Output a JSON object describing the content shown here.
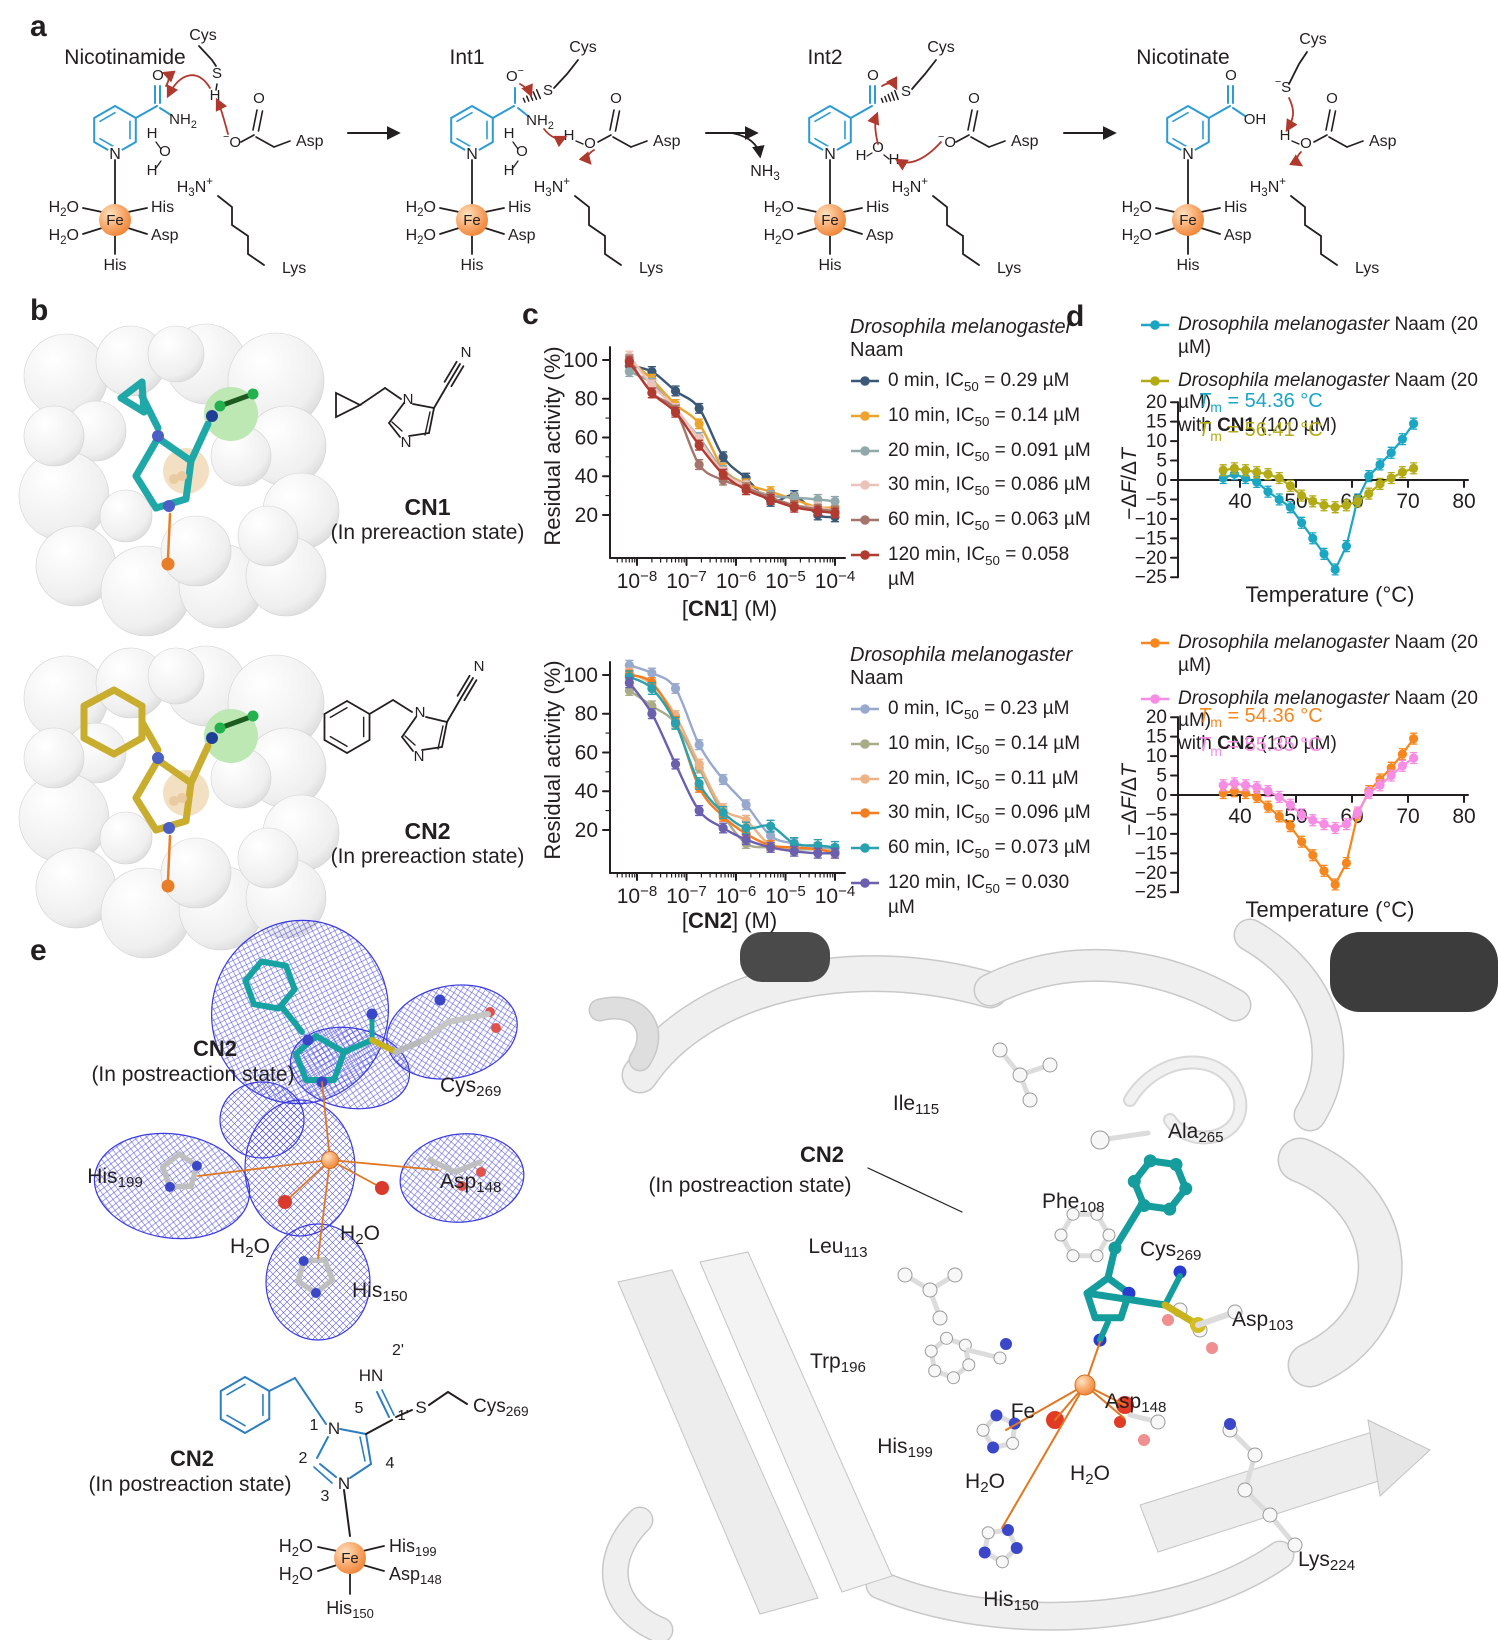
{
  "panel_letters": {
    "a": "a",
    "b": "b",
    "c": "c",
    "d": "d",
    "e": "e"
  },
  "panel_a": {
    "stage_titles": [
      "Nicotinamide",
      "Int1",
      "Int2",
      "Nicotinate"
    ],
    "atoms": {
      "O": "O",
      "N": "N",
      "S": "S",
      "H": "H",
      "OH": "OH",
      "Fe": "Fe",
      "minus": "−",
      "plus": "+"
    },
    "residues": {
      "cys": "Cys",
      "asp": "Asp",
      "lys": "Lys",
      "his": "His"
    },
    "molecules": {
      "nh2": [
        {
          "t": "NH"
        },
        {
          "s": "2"
        }
      ],
      "nh3": [
        {
          "t": "NH"
        },
        {
          "s": "3"
        }
      ],
      "h2o": [
        {
          "t": "H"
        },
        {
          "s": "2"
        },
        {
          "t": "O"
        }
      ],
      "h3n": [
        {
          "t": "H"
        },
        {
          "s": "3"
        },
        {
          "t": "N"
        },
        {
          "sup": "+"
        }
      ],
      "o_minus": [
        {
          "sup": "−"
        },
        {
          "t": "O"
        }
      ],
      "o_minus_r": [
        {
          "t": "O"
        },
        {
          "sup": "−"
        }
      ],
      "s_minus": [
        {
          "sup": "−"
        },
        {
          "t": "S"
        }
      ]
    }
  },
  "panel_b": {
    "cn1": {
      "name": "CN1",
      "state": "(In prereaction state)",
      "nitrile_n": "N",
      "ring_n": "N"
    },
    "cn2": {
      "name": "CN2",
      "state": "(In prereaction state)",
      "nitrile_n": "N",
      "ring_n": "N"
    }
  },
  "chart_data": [
    {
      "id": "dose_cn1",
      "type": "scatter",
      "ylabel": "Residual activity (%)",
      "xlabel_parts": {
        "pre": "[",
        "bold": "CN1",
        "post": "] (M)"
      },
      "legend": {
        "title_italic": "Drosophila melanogaster",
        "title_rest": "Naam"
      },
      "x_M": [
        7e-09,
        2e-08,
        6e-08,
        1.8e-07,
        5.5e-07,
        1.6e-06,
        5e-06,
        1.5e-05,
        4.5e-05,
        0.0001
      ],
      "xtick_exponents": [
        -8,
        -7,
        -6,
        -5,
        -4
      ],
      "yticks": [
        20,
        40,
        60,
        80,
        100
      ],
      "ylim": [
        0,
        110
      ],
      "series": [
        {
          "label": {
            "pre": "0 min, IC",
            "sub": "50",
            "post": " = 0.29  µM"
          },
          "color": "#3b5876",
          "err": 2.5,
          "y": [
            97,
            94,
            84,
            75,
            50,
            39,
            27,
            30,
            20,
            19
          ]
        },
        {
          "label": {
            "pre": "10 min, IC",
            "sub": "50",
            "post": " = 0.14  µM"
          },
          "color": "#eca42f",
          "err": 2.5,
          "y": [
            100,
            90,
            77,
            67,
            44,
            36,
            32,
            28,
            24,
            24
          ]
        },
        {
          "label": {
            "pre": "20 min, IC",
            "sub": "50",
            "post": " = 0.091  µM"
          },
          "color": "#92a9ab",
          "err": 2.5,
          "y": [
            94,
            88,
            74,
            60,
            43,
            35,
            30,
            29,
            28,
            27
          ]
        },
        {
          "label": {
            "pre": "30 min, IC",
            "sub": "50",
            "post": " = 0.086  µM"
          },
          "color": "#ecc3bb",
          "err": 2.5,
          "y": [
            102,
            87,
            75,
            59,
            42,
            35,
            29,
            25,
            24,
            22
          ]
        },
        {
          "label": {
            "pre": "60 min, IC",
            "sub": "50",
            "post": " = 0.063  µM"
          },
          "color": "#a4766b",
          "err": 2.5,
          "y": [
            100,
            83,
            74,
            46,
            38,
            34,
            29,
            25,
            23,
            22
          ]
        },
        {
          "label": {
            "pre": "120 min, IC",
            "sub": "50",
            "post": " = 0.058  µM"
          },
          "color": "#b23b31",
          "err": 2.5,
          "y": [
            99,
            83,
            73,
            56,
            41,
            33,
            28,
            24,
            22,
            21
          ]
        }
      ]
    },
    {
      "id": "dose_cn2",
      "type": "scatter",
      "ylabel": "Residual activity (%)",
      "xlabel_parts": {
        "pre": "[",
        "bold": "CN2",
        "post": "] (M)"
      },
      "legend": {
        "title_italic": "Drosophila melanogaster",
        "title_rest": "Naam"
      },
      "x_M": [
        7e-09,
        2e-08,
        6e-08,
        1.8e-07,
        5.5e-07,
        1.6e-06,
        5e-06,
        1.5e-05,
        4.5e-05,
        0.0001
      ],
      "xtick_exponents": [
        -8,
        -7,
        -6,
        -5,
        -4
      ],
      "yticks": [
        20,
        40,
        60,
        80,
        100
      ],
      "ylim": [
        0,
        110
      ],
      "series": [
        {
          "label": {
            "pre": "0 min, IC",
            "sub": "50",
            "post": " = 0.23  µM"
          },
          "color": "#98a9ce",
          "err": 2.5,
          "y": [
            105,
            101,
            93,
            64,
            46,
            33,
            17,
            13,
            11,
            10
          ]
        },
        {
          "label": {
            "pre": "10 min, IC",
            "sub": "50",
            "post": " = 0.14  µM"
          },
          "color": "#a9ab89",
          "err": 2.5,
          "y": [
            92,
            84,
            75,
            52,
            28,
            13,
            11,
            10,
            10,
            9
          ]
        },
        {
          "label": {
            "pre": "20 min, IC",
            "sub": "50",
            "post": " = 0.11  µM"
          },
          "color": "#edb286",
          "err": 2.5,
          "y": [
            101,
            95,
            79,
            54,
            31,
            25,
            12,
            11,
            10,
            9
          ]
        },
        {
          "label": {
            "pre": "30 min, IC",
            "sub": "50",
            "post": " = 0.096  µM"
          },
          "color": "#f57d21",
          "err": 2.5,
          "y": [
            100,
            96,
            76,
            42,
            27,
            18,
            12,
            11,
            10,
            8
          ]
        },
        {
          "label": {
            "pre": "60 min, IC",
            "sub": "50",
            "post": " = 0.073  µM"
          },
          "color": "#29a1ae",
          "err": 3,
          "y": [
            99,
            93,
            75,
            44,
            29,
            21,
            22,
            13,
            12,
            11
          ]
        },
        {
          "label": {
            "pre": "120 min, IC",
            "sub": "50",
            "post": " = 0.030  µM"
          },
          "color": "#6a60ae",
          "err": 2.5,
          "y": [
            96,
            80,
            54,
            30,
            21,
            15,
            11,
            9,
            8,
            8
          ]
        }
      ]
    },
    {
      "id": "melt_cn1",
      "type": "line",
      "ylabel_parts": [
        {
          "t": "−Δ"
        },
        {
          "i": "F"
        },
        {
          "t": "/Δ"
        },
        {
          "i": "T"
        }
      ],
      "xlabel": "Temperature (°C)",
      "xticks": [
        40,
        50,
        60,
        70,
        80
      ],
      "yticks": [
        -25,
        -20,
        -15,
        -10,
        -5,
        0,
        5,
        10,
        15,
        20
      ],
      "x": [
        37,
        39,
        41,
        43,
        45,
        47,
        49,
        51,
        53,
        55,
        57,
        59,
        61,
        63,
        65,
        67,
        69,
        71
      ],
      "annotations": [
        {
          "pre": "T",
          "sub": "m",
          "post": " = 54.36 °C",
          "color": "#1ba6c4"
        },
        {
          "pre": "T",
          "sub": "m",
          "post": " = 56.41 °C",
          "color": "#b3ab16"
        }
      ],
      "series": [
        {
          "legend": {
            "italic": "Drosophila melanogaster",
            "rest": " Naam (20 µM)"
          },
          "color": "#1ba6c4",
          "err": 1.4,
          "y": [
            0.5,
            1.5,
            0.5,
            -0.5,
            -3,
            -5,
            -7,
            -11,
            -15,
            -19,
            -23,
            -17,
            -5,
            1,
            4,
            7,
            10.5,
            14.5
          ]
        },
        {
          "legend": {
            "italic": "Drosophila melanogaster",
            "rest": " Naam (20 µM)",
            "line2_pre": "with ",
            "line2_bold": "CN1",
            "line2_post": " (100 µM)"
          },
          "color": "#b3ab16",
          "err": 1.4,
          "y": [
            2.5,
            3,
            2.5,
            2,
            1.5,
            0.5,
            -1.5,
            -4,
            -5.5,
            -6.5,
            -7,
            -6.5,
            -5.5,
            -3.5,
            -1,
            0.5,
            2,
            3
          ]
        }
      ]
    },
    {
      "id": "melt_cn2",
      "type": "line",
      "ylabel_parts": [
        {
          "t": "−Δ"
        },
        {
          "i": "F"
        },
        {
          "t": "/Δ"
        },
        {
          "i": "T"
        }
      ],
      "xlabel": "Temperature (°C)",
      "xticks": [
        40,
        50,
        60,
        70,
        80
      ],
      "yticks": [
        -25,
        -20,
        -15,
        -10,
        -5,
        0,
        5,
        10,
        15,
        20
      ],
      "x": [
        37,
        39,
        41,
        43,
        45,
        47,
        49,
        51,
        53,
        55,
        57,
        59,
        61,
        63,
        65,
        67,
        69,
        71
      ],
      "annotations": [
        {
          "pre": "T",
          "sub": "m",
          "post": " = 54.36 °C",
          "color": "#f6871f"
        },
        {
          "pre": "T",
          "sub": "m",
          "post": " = 55.35 °C",
          "color": "#f78ce4"
        }
      ],
      "series": [
        {
          "legend": {
            "italic": "Drosophila melanogaster",
            "rest": " Naam (20 µM)"
          },
          "color": "#f6871f",
          "err": 1.4,
          "y": [
            0.5,
            1,
            0.5,
            -0.5,
            -3,
            -5.5,
            -8,
            -12,
            -15.5,
            -19.5,
            -23,
            -17.5,
            -5,
            1,
            4,
            7,
            10.5,
            14.5
          ]
        },
        {
          "legend": {
            "italic": "Drosophila melanogaster",
            "rest": " Naam (20 µM)",
            "line2_pre": "with ",
            "line2_bold": "CN2",
            "line2_post": " (100 µM)"
          },
          "color": "#f78ce4",
          "err": 1.4,
          "y": [
            2.5,
            3,
            2.5,
            2,
            1,
            -0.5,
            -2.5,
            -5,
            -6.5,
            -7.5,
            -8.5,
            -7.5,
            -4.5,
            0.5,
            2.5,
            5,
            7.5,
            9.5
          ]
        }
      ]
    }
  ],
  "panel_e": {
    "density": {
      "ligand_bold": "CN2",
      "ligand_state": "(In postreaction state)",
      "labels": [
        {
          "id": "cys269",
          "parts": [
            {
              "t": "Cys"
            },
            {
              "s": "269"
            }
          ]
        },
        {
          "id": "his199",
          "parts": [
            {
              "t": "His"
            },
            {
              "s": "199"
            }
          ]
        },
        {
          "id": "asp148",
          "parts": [
            {
              "t": "Asp"
            },
            {
              "s": "148"
            }
          ]
        },
        {
          "id": "h2o-left",
          "parts": [
            {
              "t": "H"
            },
            {
              "s": "2"
            },
            {
              "t": "O"
            }
          ]
        },
        {
          "id": "h2o-right",
          "parts": [
            {
              "t": "H"
            },
            {
              "s": "2"
            },
            {
              "t": "O"
            }
          ]
        },
        {
          "id": "his150",
          "parts": [
            {
              "t": "His"
            },
            {
              "s": "150"
            }
          ]
        }
      ]
    },
    "scheme": {
      "ligand_bold": "CN2",
      "ligand_state": "(In postreaction state)",
      "numbers": {
        "n1": "1",
        "n2": "2",
        "n3": "3",
        "n4": "4",
        "n5": "5",
        "c1p": "1'",
        "c2p": "2'"
      },
      "hn": "HN",
      "s": "S",
      "n": "N",
      "fe": "Fe",
      "cys": [
        {
          "t": "Cys"
        },
        {
          "s": "269"
        }
      ],
      "h2o": [
        {
          "t": "H"
        },
        {
          "s": "2"
        },
        {
          "t": "O"
        }
      ],
      "his199": [
        {
          "t": "His"
        },
        {
          "s": "199"
        }
      ],
      "asp148": [
        {
          "t": "Asp"
        },
        {
          "s": "148"
        }
      ],
      "his150": [
        {
          "t": "His"
        },
        {
          "s": "150"
        }
      ]
    },
    "pocket": {
      "ligand_bold": "CN2",
      "ligand_state": "(In postreaction state)",
      "fe": "Fe",
      "labels": [
        {
          "id": "ile115",
          "parts": [
            {
              "t": "Ile"
            },
            {
              "s": "115"
            }
          ]
        },
        {
          "id": "ala265",
          "parts": [
            {
              "t": "Ala"
            },
            {
              "s": "265"
            }
          ]
        },
        {
          "id": "phe108",
          "parts": [
            {
              "t": "Phe"
            },
            {
              "s": "108"
            }
          ]
        },
        {
          "id": "cys269",
          "parts": [
            {
              "t": "Cys"
            },
            {
              "s": "269"
            }
          ]
        },
        {
          "id": "leu113",
          "parts": [
            {
              "t": "Leu"
            },
            {
              "s": "113"
            }
          ]
        },
        {
          "id": "trp196",
          "parts": [
            {
              "t": "Trp"
            },
            {
              "s": "196"
            }
          ]
        },
        {
          "id": "asp103",
          "parts": [
            {
              "t": "Asp"
            },
            {
              "s": "103"
            }
          ]
        },
        {
          "id": "asp148",
          "parts": [
            {
              "t": "Asp"
            },
            {
              "s": "148"
            }
          ]
        },
        {
          "id": "his199",
          "parts": [
            {
              "t": "His"
            },
            {
              "s": "199"
            }
          ]
        },
        {
          "id": "h2o-left",
          "parts": [
            {
              "t": "H"
            },
            {
              "s": "2"
            },
            {
              "t": "O"
            }
          ]
        },
        {
          "id": "h2o-right",
          "parts": [
            {
              "t": "H"
            },
            {
              "s": "2"
            },
            {
              "t": "O"
            }
          ]
        },
        {
          "id": "his150",
          "parts": [
            {
              "t": "His"
            },
            {
              "s": "150"
            }
          ]
        },
        {
          "id": "lys224",
          "parts": [
            {
              "t": "Lys"
            },
            {
              "s": "224"
            }
          ]
        }
      ]
    }
  }
}
